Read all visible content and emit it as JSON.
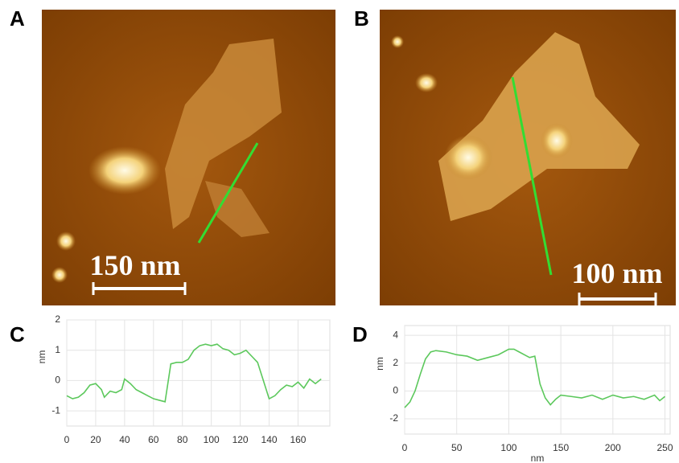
{
  "images": [
    {
      "label": "A",
      "scale_bar": "150 nm"
    },
    {
      "label": "B",
      "scale_bar": "100 nm"
    }
  ],
  "chart_data": [
    {
      "type": "line",
      "label": "C",
      "ylabel": "nm",
      "x": [
        0,
        4,
        8,
        12,
        16,
        20,
        24,
        26,
        30,
        34,
        38,
        40,
        44,
        48,
        52,
        56,
        60,
        64,
        68,
        72,
        76,
        80,
        84,
        88,
        92,
        96,
        100,
        104,
        108,
        112,
        116,
        120,
        124,
        128,
        132,
        136,
        140,
        144,
        148,
        152,
        156,
        160,
        164,
        168,
        172,
        176
      ],
      "series": [
        {
          "color": "#5cc85c",
          "values": [
            -0.5,
            -0.6,
            -0.55,
            -0.4,
            -0.15,
            -0.1,
            -0.3,
            -0.55,
            -0.35,
            -0.4,
            -0.3,
            0.05,
            -0.1,
            -0.3,
            -0.4,
            -0.5,
            -0.6,
            -0.65,
            -0.7,
            0.55,
            0.6,
            0.6,
            0.7,
            1.0,
            1.15,
            1.2,
            1.15,
            1.2,
            1.05,
            1.0,
            0.85,
            0.9,
            1.0,
            0.8,
            0.6,
            0.0,
            -0.6,
            -0.5,
            -0.3,
            -0.15,
            -0.2,
            -0.05,
            -0.25,
            0.05,
            -0.1,
            0.05
          ]
        }
      ],
      "xlim": [
        0,
        182
      ],
      "ylim": [
        -1.5,
        2
      ],
      "xticks": [
        0,
        20,
        40,
        60,
        80,
        100,
        120,
        140,
        160
      ],
      "yticks": [
        -1,
        0,
        1,
        2
      ],
      "grid": true
    },
    {
      "type": "line",
      "label": "D",
      "ylabel": "nm",
      "xlabel": "nm",
      "x": [
        0,
        5,
        10,
        15,
        20,
        25,
        30,
        40,
        50,
        60,
        70,
        80,
        90,
        100,
        105,
        110,
        120,
        125,
        130,
        135,
        140,
        145,
        150,
        160,
        170,
        180,
        190,
        200,
        210,
        220,
        230,
        240,
        245,
        250
      ],
      "series": [
        {
          "color": "#5cc85c",
          "values": [
            -1.2,
            -0.8,
            0,
            1.2,
            2.3,
            2.8,
            2.9,
            2.8,
            2.6,
            2.5,
            2.2,
            2.4,
            2.6,
            3.0,
            3.0,
            2.8,
            2.4,
            2.5,
            0.5,
            -0.5,
            -1.0,
            -0.6,
            -0.3,
            -0.4,
            -0.5,
            -0.3,
            -0.6,
            -0.3,
            -0.5,
            -0.4,
            -0.6,
            -0.3,
            -0.7,
            -0.4
          ]
        }
      ],
      "xlim": [
        0,
        255
      ],
      "ylim": [
        -3.1,
        4.7
      ],
      "xticks": [
        0,
        50,
        100,
        150,
        200,
        250
      ],
      "yticks": [
        -2,
        0,
        2,
        4
      ],
      "grid": true
    }
  ]
}
